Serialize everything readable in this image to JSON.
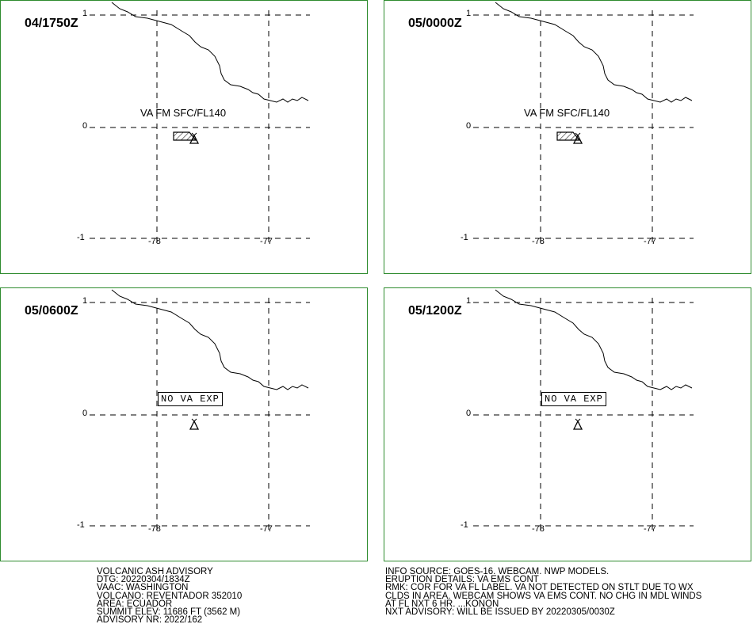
{
  "panels": [
    {
      "time": "04/1750Z",
      "label": "VA FM SFC/FL140",
      "type": "ash"
    },
    {
      "time": "05/0000Z",
      "label": "VA FM SFC/FL140",
      "type": "ash"
    },
    {
      "time": "05/0600Z",
      "label": "NO VA EXP",
      "type": "none"
    },
    {
      "time": "05/1200Z",
      "label": "NO VA EXP",
      "type": "none"
    }
  ],
  "axes": {
    "lat_labels": [
      "1",
      "0",
      "-1"
    ],
    "lon_labels": [
      "-78",
      "-77"
    ]
  },
  "advisory_left": [
    "VOLCANIC ASH ADVISORY",
    "DTG: 20220304/1834Z",
    "VAAC: WASHINGTON",
    "VOLCANO: REVENTADOR 352010",
    "AREA: ECUADOR",
    "SUMMIT ELEV: 11686 FT (3562 M)",
    "ADVISORY NR: 2022/162"
  ],
  "advisory_right": [
    "INFO SOURCE: GOES-16. WEBCAM. NWP MODELS.",
    "ERUPTION DETAILS: VA EMS CONT",
    "RMK: COR FOR VA FL LABEL. VA NOT DETECTED ON STLT DUE TO WX",
    "CLDS IN AREA. WEBCAM SHOWS VA EMS CONT. NO CHG IN MDL WINDS",
    "AT FL NXT 6 HR. ...KONON",
    "NXT ADVISORY: WILL BE ISSUED BY 20220305/0030Z"
  ],
  "colors": {
    "panel_border": "#2e8b2e",
    "line": "#000000"
  }
}
